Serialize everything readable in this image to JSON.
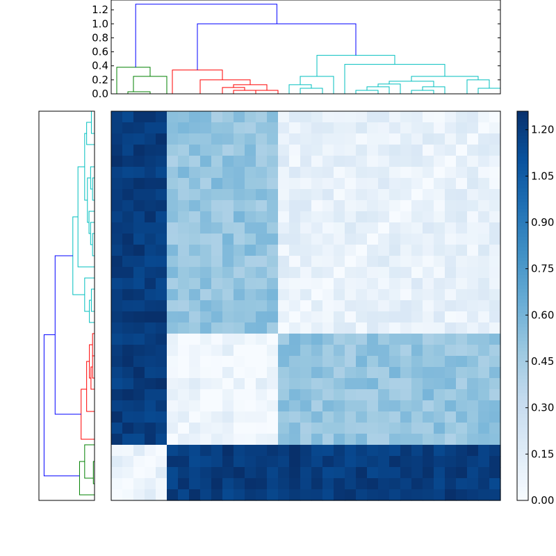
{
  "chart_data": [
    {
      "type": "dendrogram",
      "orientation": "top",
      "yticks": [
        "0.0",
        "0.2",
        "0.4",
        "0.6",
        "0.8",
        "1.0",
        "1.2"
      ],
      "ylim": [
        0,
        1.34
      ],
      "n_leaves": 35,
      "colors": {
        "green": "#008000",
        "red": "#ff0000",
        "cyan": "#00bfbf",
        "blue": "#0000ff"
      },
      "links": [
        {
          "a": 1.5,
          "b": 3.5,
          "ha": 0,
          "hb": 0,
          "h": 0.03,
          "c": "green"
        },
        {
          "a": 2,
          "b": 5,
          "ha": 0.03,
          "hb": 0,
          "h": 0.25,
          "c": "green"
        },
        {
          "a": 0.5,
          "b": 3.5,
          "ha": 0,
          "hb": 0.25,
          "h": 0.38,
          "c": "green"
        },
        {
          "a": 11,
          "b": 13,
          "ha": 0,
          "hb": 0,
          "h": 0.05,
          "c": "red"
        },
        {
          "a": 10,
          "b": 12,
          "ha": 0,
          "hb": 0.05,
          "h": 0.09,
          "c": "red"
        },
        {
          "a": 13,
          "b": 15,
          "ha": 0,
          "hb": 0,
          "h": 0.05,
          "c": "red"
        },
        {
          "a": 11,
          "b": 14,
          "ha": 0.09,
          "hb": 0.05,
          "h": 0.13,
          "c": "red"
        },
        {
          "a": 8,
          "b": 12.5,
          "ha": 0,
          "hb": 0.13,
          "h": 0.2,
          "c": "red"
        },
        {
          "a": 5.5,
          "b": 10,
          "ha": 0,
          "hb": 0.2,
          "h": 0.34,
          "c": "red"
        },
        {
          "a": 17,
          "b": 19,
          "ha": 0,
          "hb": 0,
          "h": 0.08,
          "c": "cyan"
        },
        {
          "a": 16,
          "b": 18,
          "ha": 0,
          "hb": 0.08,
          "h": 0.13,
          "c": "cyan"
        },
        {
          "a": 17,
          "b": 20,
          "ha": 0.13,
          "hb": 0,
          "h": 0.25,
          "c": "cyan"
        },
        {
          "a": 22,
          "b": 24,
          "ha": 0,
          "hb": 0,
          "h": 0.05,
          "c": "cyan"
        },
        {
          "a": 23,
          "b": 25,
          "ha": 0.05,
          "hb": 0,
          "h": 0.1,
          "c": "cyan"
        },
        {
          "a": 24,
          "b": 26,
          "ha": 0.1,
          "hb": 0,
          "h": 0.14,
          "c": "cyan"
        },
        {
          "a": 27,
          "b": 29,
          "ha": 0,
          "hb": 0,
          "h": 0.05,
          "c": "cyan"
        },
        {
          "a": 28,
          "b": 30,
          "ha": 0.05,
          "hb": 0,
          "h": 0.1,
          "c": "cyan"
        },
        {
          "a": 25,
          "b": 29,
          "ha": 0.14,
          "hb": 0.1,
          "h": 0.18,
          "c": "cyan"
        },
        {
          "a": 33,
          "b": 35,
          "ha": 0,
          "hb": 0,
          "h": 0.08,
          "c": "cyan"
        },
        {
          "a": 32,
          "b": 34,
          "ha": 0,
          "hb": 0.08,
          "h": 0.2,
          "c": "cyan"
        },
        {
          "a": 27,
          "b": 33,
          "ha": 0.18,
          "hb": 0.2,
          "h": 0.25,
          "c": "cyan"
        },
        {
          "a": 21,
          "b": 30,
          "ha": 0,
          "hb": 0.25,
          "h": 0.42,
          "c": "cyan"
        },
        {
          "a": 18.5,
          "b": 25.5,
          "ha": 0.25,
          "hb": 0.42,
          "h": 0.55,
          "c": "cyan"
        },
        {
          "a": 7.75,
          "b": 22,
          "ha": 0.34,
          "hb": 0.55,
          "h": 1.0,
          "c": "blue"
        },
        {
          "a": 2.2,
          "b": 14.9,
          "ha": 0.38,
          "hb": 1.0,
          "h": 1.28,
          "c": "blue"
        }
      ]
    },
    {
      "type": "dendrogram",
      "orientation": "left",
      "n_leaves": 35,
      "colors": {
        "green": "#008000",
        "red": "#ff0000",
        "cyan": "#00bfbf",
        "blue": "#0000ff"
      },
      "links": [
        {
          "a": 1.5,
          "b": 3.5,
          "ha": 0,
          "hb": 0,
          "h": 0.03,
          "c": "green"
        },
        {
          "a": 2,
          "b": 5,
          "ha": 0.03,
          "hb": 0,
          "h": 0.25,
          "c": "green"
        },
        {
          "a": 0.5,
          "b": 3.5,
          "ha": 0,
          "hb": 0.25,
          "h": 0.38,
          "c": "green"
        },
        {
          "a": 11,
          "b": 13,
          "ha": 0,
          "hb": 0,
          "h": 0.05,
          "c": "red"
        },
        {
          "a": 10,
          "b": 12,
          "ha": 0,
          "hb": 0.05,
          "h": 0.09,
          "c": "red"
        },
        {
          "a": 13,
          "b": 15,
          "ha": 0,
          "hb": 0,
          "h": 0.05,
          "c": "red"
        },
        {
          "a": 11,
          "b": 14,
          "ha": 0.09,
          "hb": 0.05,
          "h": 0.13,
          "c": "red"
        },
        {
          "a": 8,
          "b": 12.5,
          "ha": 0,
          "hb": 0.13,
          "h": 0.2,
          "c": "red"
        },
        {
          "a": 5.5,
          "b": 10,
          "ha": 0,
          "hb": 0.2,
          "h": 0.34,
          "c": "red"
        },
        {
          "a": 17,
          "b": 19,
          "ha": 0,
          "hb": 0,
          "h": 0.08,
          "c": "cyan"
        },
        {
          "a": 16,
          "b": 18,
          "ha": 0,
          "hb": 0.08,
          "h": 0.13,
          "c": "cyan"
        },
        {
          "a": 17,
          "b": 20,
          "ha": 0.13,
          "hb": 0,
          "h": 0.25,
          "c": "cyan"
        },
        {
          "a": 22,
          "b": 24,
          "ha": 0,
          "hb": 0,
          "h": 0.05,
          "c": "cyan"
        },
        {
          "a": 23,
          "b": 25,
          "ha": 0.05,
          "hb": 0,
          "h": 0.1,
          "c": "cyan"
        },
        {
          "a": 24,
          "b": 26,
          "ha": 0.1,
          "hb": 0,
          "h": 0.14,
          "c": "cyan"
        },
        {
          "a": 27,
          "b": 29,
          "ha": 0,
          "hb": 0,
          "h": 0.05,
          "c": "cyan"
        },
        {
          "a": 28,
          "b": 30,
          "ha": 0.05,
          "hb": 0,
          "h": 0.1,
          "c": "cyan"
        },
        {
          "a": 25,
          "b": 29,
          "ha": 0.14,
          "hb": 0.1,
          "h": 0.18,
          "c": "cyan"
        },
        {
          "a": 33,
          "b": 35,
          "ha": 0,
          "hb": 0,
          "h": 0.08,
          "c": "cyan"
        },
        {
          "a": 32,
          "b": 34,
          "ha": 0,
          "hb": 0.08,
          "h": 0.2,
          "c": "cyan"
        },
        {
          "a": 27,
          "b": 33,
          "ha": 0.18,
          "hb": 0.2,
          "h": 0.25,
          "c": "cyan"
        },
        {
          "a": 21,
          "b": 30,
          "ha": 0,
          "hb": 0.25,
          "h": 0.42,
          "c": "cyan"
        },
        {
          "a": 18.5,
          "b": 25.5,
          "ha": 0.25,
          "hb": 0.42,
          "h": 0.55,
          "c": "cyan"
        },
        {
          "a": 7.75,
          "b": 22,
          "ha": 0.34,
          "hb": 0.55,
          "h": 1.0,
          "c": "blue"
        },
        {
          "a": 2.2,
          "b": 14.9,
          "ha": 0.38,
          "hb": 1.0,
          "h": 1.28,
          "c": "blue"
        }
      ]
    },
    {
      "type": "heatmap",
      "colormap": "Blues",
      "vmin": 0.0,
      "vmax": 1.26,
      "colorbar_ticks": [
        "0.00",
        "0.15",
        "0.30",
        "0.45",
        "0.60",
        "0.75",
        "0.90",
        "1.05",
        "1.20"
      ],
      "colorbar_tick_values": [
        0.0,
        0.15,
        0.3,
        0.45,
        0.6,
        0.75,
        0.9,
        1.05,
        1.2
      ],
      "n_rows": 35,
      "n_cols": 35,
      "groups": {
        "A": [
          0,
          5
        ],
        "B": [
          5,
          15
        ],
        "C": [
          15,
          35
        ]
      },
      "block_means": {
        "A-A": 0.1,
        "A-B": 1.2,
        "A-C": 1.2,
        "B-B": 0.07,
        "B-C": 0.5,
        "C-C": 0.1
      },
      "row_order": "bottom-to-top",
      "note_cells": "values generated from block_means with small deterministic variation"
    }
  ]
}
